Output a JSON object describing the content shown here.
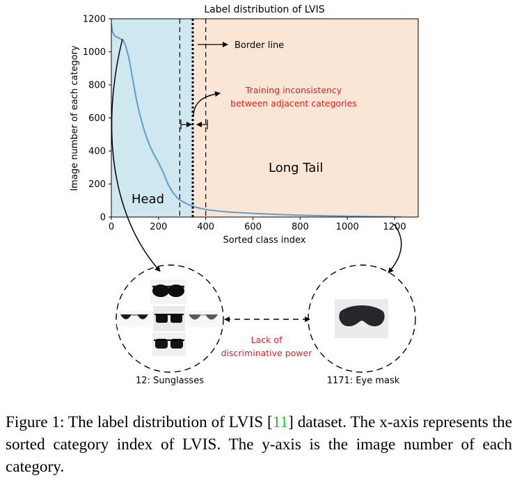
{
  "chart_data": {
    "type": "line",
    "title": "Label distribution of LVIS",
    "xlabel": "Sorted class index",
    "ylabel": "Image number of each category",
    "xlim": [
      0,
      1300
    ],
    "ylim": [
      0,
      1200
    ],
    "xticks": [
      "0",
      "200",
      "400",
      "600",
      "800",
      "1000",
      "1200"
    ],
    "yticks": [
      "0",
      "200",
      "400",
      "600",
      "800",
      "1000",
      "1200"
    ],
    "series": [
      {
        "x": [
          0,
          5,
          15,
          30,
          50,
          60,
          75,
          90,
          105,
          120,
          135,
          150,
          165,
          180,
          200,
          220,
          240,
          260,
          280,
          300,
          320,
          345,
          370,
          400,
          450,
          500,
          600,
          700,
          800,
          900,
          1000,
          1100,
          1150,
          1200,
          1230
        ],
        "y": [
          1170,
          1120,
          1095,
          1085,
          1070,
          1040,
          960,
          840,
          720,
          625,
          545,
          480,
          425,
          380,
          330,
          270,
          200,
          150,
          115,
          95,
          80,
          65,
          55,
          45,
          37,
          30,
          22,
          16,
          11,
          8,
          5,
          3,
          2,
          1,
          0
        ]
      }
    ],
    "regions": {
      "head_end": 345,
      "head_label": "Head",
      "tail_label": "Long Tail",
      "head_color": "#cfe7ef",
      "tail_color": "#fbe6d6"
    },
    "border_line_x": 345,
    "dashed_lines_x": [
      290,
      400
    ],
    "line_color": "#5d9ec9",
    "grid": false
  },
  "annotations": {
    "border_line": "Border line",
    "inconsistency_line1": "Training inconsistency",
    "inconsistency_line2": "between adjacent categories",
    "lack_line1": "Lack of",
    "lack_line2": "discriminative power",
    "accent_color": "#e02020"
  },
  "examples": {
    "left_label": "12: Sunglasses",
    "right_label": "1171: Eye mask"
  },
  "caption": {
    "lead": "Figure 1: The label distribution of LVIS [",
    "ref": "11",
    "rest": "] dataset. The x-axis represents the sorted category index of LVIS. The y-axis is the image number of each category."
  }
}
